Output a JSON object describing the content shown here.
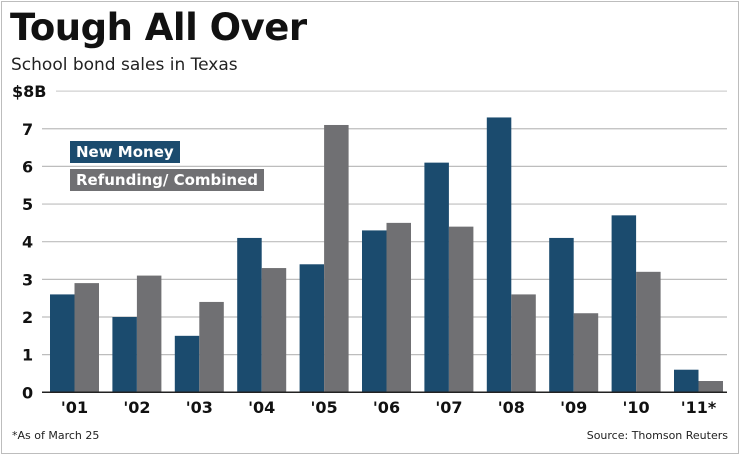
{
  "chart_data": {
    "type": "bar",
    "title": "Tough All Over",
    "subtitle": "School bond sales in Texas",
    "categories": [
      "'01",
      "'02",
      "'03",
      "'04",
      "'05",
      "'06",
      "'07",
      "'08",
      "'09",
      "'10",
      "'11*"
    ],
    "series": [
      {
        "name": "New Money",
        "color": "#1b4b6e",
        "values": [
          2.6,
          2.0,
          1.5,
          4.1,
          3.4,
          4.3,
          6.1,
          7.3,
          4.1,
          4.7,
          0.6
        ]
      },
      {
        "name": "Refunding/ Combined",
        "color": "#707073",
        "values": [
          2.9,
          3.1,
          2.4,
          3.3,
          7.1,
          4.5,
          4.4,
          2.6,
          2.1,
          3.2,
          0.3
        ]
      }
    ],
    "yticks": [
      "0",
      "1",
      "2",
      "3",
      "4",
      "5",
      "6",
      "7",
      "$8B"
    ],
    "ylim": [
      0,
      8
    ],
    "grid": true,
    "legend": "top-left",
    "footnote": "*As of March 25",
    "source": "Source: Thomson Reuters"
  }
}
